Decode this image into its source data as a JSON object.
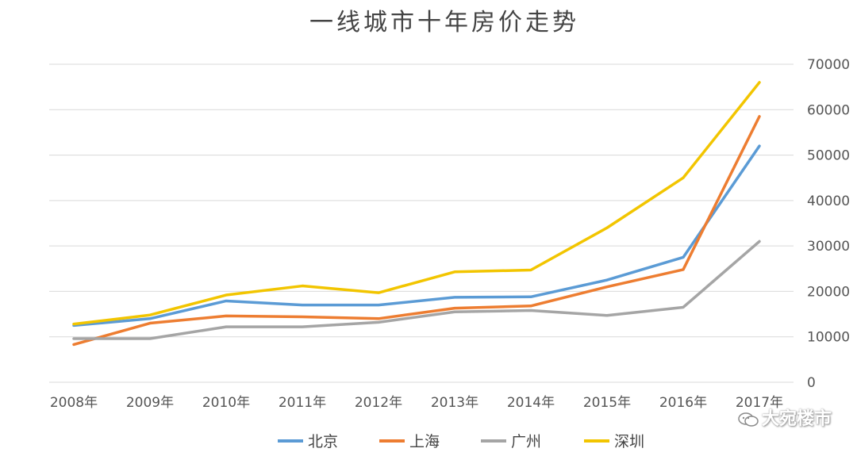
{
  "chart_data": {
    "type": "line",
    "title": "一线城市十年房价走势",
    "categories": [
      "2008年",
      "2009年",
      "2010年",
      "2011年",
      "2012年",
      "2013年",
      "2014年",
      "2015年",
      "2016年",
      "2017年"
    ],
    "ylim": [
      0,
      70000
    ],
    "yticks": [
      "0",
      "10000",
      "20000",
      "30000",
      "40000",
      "50000",
      "60000",
      "70000"
    ],
    "grid": true,
    "legend_position": "bottom",
    "series": [
      {
        "name": "北京",
        "color": "#5B9BD5",
        "values": [
          12500,
          14000,
          17900,
          17000,
          17000,
          18700,
          18800,
          22500,
          27500,
          52000
        ]
      },
      {
        "name": "上海",
        "color": "#ED7D31",
        "values": [
          8300,
          13000,
          14600,
          14400,
          14000,
          16300,
          16800,
          21000,
          24800,
          58500
        ]
      },
      {
        "name": "广州",
        "color": "#A5A5A5",
        "values": [
          9600,
          9600,
          12200,
          12200,
          13200,
          15500,
          15800,
          14700,
          16500,
          31000
        ]
      },
      {
        "name": "深圳",
        "color": "#F2C500",
        "values": [
          12800,
          14800,
          19200,
          21200,
          19700,
          24300,
          24700,
          34000,
          45000,
          66000
        ]
      }
    ]
  },
  "watermark": {
    "text": "大宛楼市",
    "icon": "wechat-icon"
  }
}
